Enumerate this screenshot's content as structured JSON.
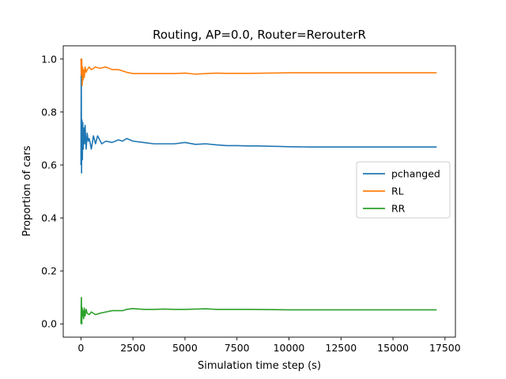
{
  "chart_data": {
    "type": "line",
    "title": "Routing, AP=0.0, Router=RerouterR",
    "xlabel": "Simulation time step (s)",
    "ylabel": "Proportion of cars",
    "xlim": [
      -850,
      18000
    ],
    "ylim": [
      -0.05,
      1.05
    ],
    "xticks": [
      0,
      2500,
      5000,
      7500,
      10000,
      12500,
      15000,
      17500
    ],
    "xtick_labels": [
      "0",
      "2500",
      "5000",
      "7500",
      "10000",
      "12500",
      "15000",
      "17500"
    ],
    "yticks": [
      0.0,
      0.2,
      0.4,
      0.6,
      0.8,
      1.0
    ],
    "ytick_labels": [
      "0.0",
      "0.2",
      "0.4",
      "0.6",
      "0.8",
      "1.0"
    ],
    "grid": false,
    "legend_position": "center-right",
    "series": [
      {
        "name": "pchanged",
        "color": "#1f77b4",
        "x": [
          0,
          15,
          30,
          50,
          70,
          90,
          110,
          140,
          170,
          200,
          250,
          300,
          350,
          400,
          500,
          600,
          700,
          800,
          1000,
          1200,
          1500,
          1800,
          2000,
          2200,
          2500,
          3000,
          3500,
          4000,
          4500,
          5000,
          5500,
          6000,
          6500,
          7000,
          7500,
          8000,
          8500,
          9000,
          9500,
          10000,
          11000,
          12000,
          13000,
          14000,
          15000,
          16000,
          17100
        ],
        "y": [
          0.6,
          1.0,
          0.57,
          0.77,
          0.62,
          0.76,
          0.66,
          0.74,
          0.68,
          0.75,
          0.66,
          0.72,
          0.69,
          0.7,
          0.66,
          0.71,
          0.68,
          0.71,
          0.68,
          0.69,
          0.685,
          0.695,
          0.69,
          0.7,
          0.69,
          0.685,
          0.68,
          0.68,
          0.68,
          0.685,
          0.678,
          0.68,
          0.676,
          0.673,
          0.673,
          0.672,
          0.672,
          0.671,
          0.67,
          0.669,
          0.668,
          0.668,
          0.668,
          0.668,
          0.668,
          0.668,
          0.668
        ]
      },
      {
        "name": "RL",
        "color": "#ff7f0e",
        "x": [
          0,
          20,
          40,
          60,
          80,
          100,
          130,
          160,
          200,
          250,
          300,
          400,
          500,
          700,
          900,
          1200,
          1500,
          1800,
          2000,
          2200,
          2500,
          3000,
          3500,
          4000,
          4500,
          5000,
          5500,
          6000,
          6500,
          7000,
          8000,
          9000,
          10000,
          11000,
          12000,
          13000,
          14000,
          15000,
          16000,
          17100
        ],
        "y": [
          1.0,
          0.94,
          1.0,
          0.9,
          0.97,
          0.92,
          0.96,
          0.93,
          0.97,
          0.95,
          0.96,
          0.97,
          0.96,
          0.97,
          0.965,
          0.97,
          0.96,
          0.96,
          0.955,
          0.95,
          0.945,
          0.945,
          0.945,
          0.945,
          0.945,
          0.947,
          0.943,
          0.945,
          0.947,
          0.946,
          0.946,
          0.947,
          0.948,
          0.948,
          0.948,
          0.948,
          0.948,
          0.948,
          0.948,
          0.948
        ]
      },
      {
        "name": "RR",
        "color": "#2ca02c",
        "x": [
          0,
          20,
          40,
          60,
          80,
          100,
          130,
          160,
          200,
          250,
          300,
          400,
          500,
          700,
          900,
          1200,
          1500,
          1800,
          2000,
          2200,
          2500,
          3000,
          3500,
          4000,
          4500,
          5000,
          5500,
          6000,
          6500,
          7000,
          8000,
          9000,
          10000,
          11000,
          12000,
          13000,
          14000,
          15000,
          16000,
          17100
        ],
        "y": [
          0.0,
          0.1,
          0.0,
          0.06,
          0.03,
          0.05,
          0.02,
          0.06,
          0.03,
          0.055,
          0.04,
          0.035,
          0.045,
          0.035,
          0.04,
          0.045,
          0.05,
          0.05,
          0.05,
          0.055,
          0.058,
          0.055,
          0.055,
          0.056,
          0.055,
          0.055,
          0.056,
          0.057,
          0.055,
          0.055,
          0.055,
          0.054,
          0.053,
          0.053,
          0.053,
          0.053,
          0.053,
          0.053,
          0.053,
          0.053
        ]
      }
    ]
  }
}
